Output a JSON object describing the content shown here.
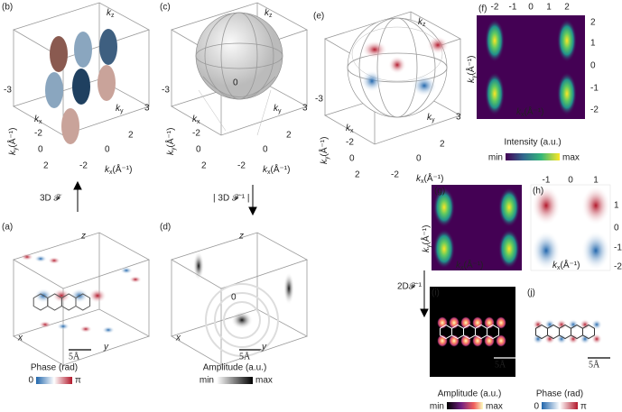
{
  "b": {
    "label": "(b)",
    "kz": {
      "k": "k",
      "s": "z"
    },
    "kx": {
      "k": "k",
      "s": "x"
    },
    "ky": {
      "k": "k",
      "s": "y"
    },
    "kxa": {
      "k": "k",
      "s": "x",
      "u": "(Å⁻¹)"
    },
    "kya": {
      "k": "k",
      "s": "y",
      "u": "(Å⁻¹)"
    },
    "ticks": [
      "-3",
      "-2",
      "0",
      "2",
      "-2",
      "0",
      "2",
      "3"
    ]
  },
  "c": {
    "label": "(c)",
    "kz": {
      "k": "k",
      "s": "z"
    },
    "kx": {
      "k": "k",
      "s": "x"
    },
    "ky": {
      "k": "k",
      "s": "y"
    },
    "kxa": {
      "k": "k",
      "s": "x",
      "u": "(Å⁻¹)"
    },
    "kya": {
      "k": "k",
      "s": "y",
      "u": "(Å⁻¹)"
    },
    "ticks": [
      "-3",
      "-2",
      "0",
      "2",
      "-2",
      "0",
      "2",
      "3"
    ],
    "zero": "0"
  },
  "e": {
    "label": "(e)",
    "kz": {
      "k": "k",
      "s": "z"
    },
    "kx": {
      "k": "k",
      "s": "x"
    },
    "ky": {
      "k": "k",
      "s": "y"
    },
    "kxa": {
      "k": "k",
      "s": "x",
      "u": "(Å⁻¹)"
    },
    "kya": {
      "k": "k",
      "s": "y",
      "u": "(Å⁻¹)"
    },
    "ticks": [
      "-3",
      "-2",
      "0",
      "2",
      "-2",
      "0",
      "2",
      "3"
    ]
  },
  "f": {
    "label": "(f)",
    "top": [
      "-2",
      "-1",
      "0",
      "1",
      "2"
    ],
    "right": [
      "2",
      "1",
      "0",
      "-1",
      "-2"
    ],
    "kya": {
      "k": "k",
      "s": "y",
      "u": "(Å⁻¹)"
    },
    "kxa": {
      "k": "k",
      "s": "x",
      "u": "(Å⁻¹)"
    },
    "cbar": {
      "title": "Intensity (a.u.)",
      "min": "min",
      "max": "max"
    }
  },
  "g": {
    "label": "(g)",
    "kya": {
      "k": "k",
      "s": "y",
      "u": "(Å⁻¹)"
    },
    "kxa": {
      "k": "k",
      "s": "x",
      "u": "(Å⁻¹)"
    }
  },
  "h": {
    "label": "(h)",
    "top": [
      "-1",
      "0",
      "1"
    ],
    "right": [
      "1",
      "0",
      "-1",
      "-2"
    ],
    "kxa": {
      "k": "k",
      "s": "x",
      "u": "(Å⁻¹)"
    }
  },
  "i": {
    "label": "(i)",
    "scale": "5Å",
    "cbar": {
      "title": "Amplitude (a.u.)",
      "min": "min",
      "max": "max"
    }
  },
  "j": {
    "label": "(j)",
    "scale": "5Å",
    "cbar": {
      "title": "Phase (rad)",
      "min": "0",
      "max": "π"
    }
  },
  "a": {
    "label": "(a)",
    "z": "z",
    "x": "x",
    "y": "y",
    "scale": "5Å",
    "cbar": {
      "title": "Phase (rad)",
      "min": "0",
      "max": "π"
    }
  },
  "d": {
    "label": "(d)",
    "z": "z",
    "x": "x",
    "y": "y",
    "zero": "0",
    "scale": "5Å",
    "cbar": {
      "title": "Amplitude (a.u.)",
      "min": "min",
      "max": "max"
    }
  },
  "arrows": {
    "forward": "3D 𝓕",
    "inverse": "| 3D 𝓕⁻¹ |",
    "inverse2d": "2D𝓕⁻¹"
  }
}
